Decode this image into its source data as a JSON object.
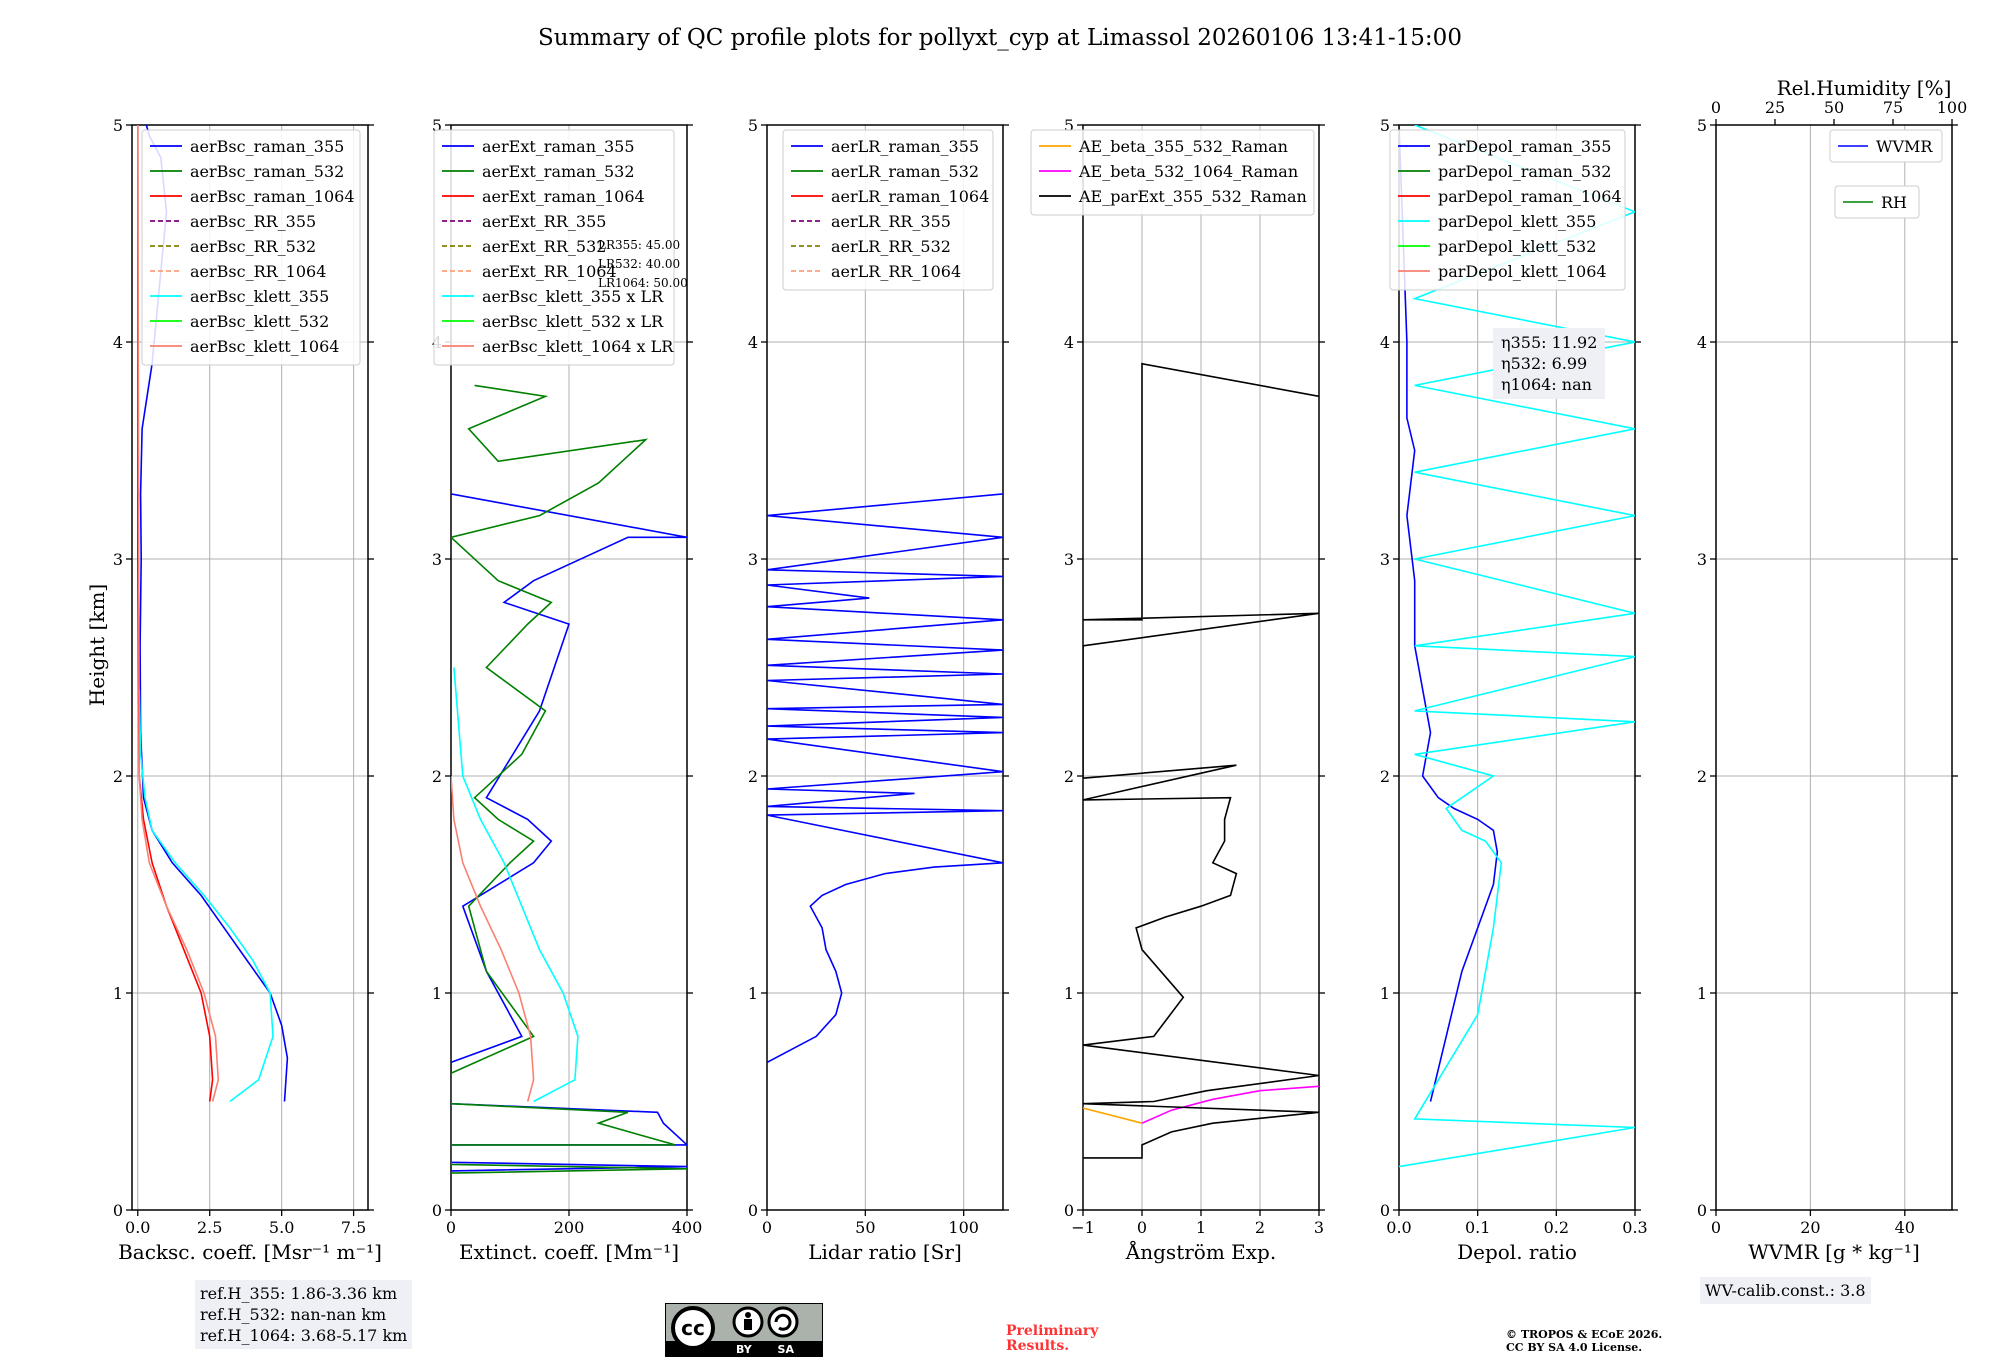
{
  "title": "Summary of QC profile plots for pollyxt_cyp at Limassol 20260106 13:41-15:00",
  "ylabel": "Height [km]",
  "colors": {
    "raman_355": "#0000ff",
    "raman_532": "#008000",
    "raman_1064": "#ff0000",
    "rr_355": "#800080",
    "rr_532": "#808000",
    "rr_1064": "#ffa07a",
    "klett_355": "#00ffff",
    "klett_532": "#00ff00",
    "klett_1064": "#fa8072",
    "ae_355_532": "#ffa500",
    "ae_532_1064": "#ff00ff",
    "ae_parext": "#000000",
    "box_bg": "#eef0f5",
    "prelim": "#ff3333"
  },
  "panels": {
    "bsc": {
      "xlabel": "Backsc. coeff. [Msr⁻¹ m⁻¹]",
      "legend": [
        "aerBsc_raman_355",
        "aerBsc_raman_532",
        "aerBsc_raman_1064",
        "aerBsc_RR_355",
        "aerBsc_RR_532",
        "aerBsc_RR_1064",
        "aerBsc_klett_355",
        "aerBsc_klett_532",
        "aerBsc_klett_1064"
      ]
    },
    "ext": {
      "xlabel": "Extinct. coeff. [Mm⁻¹]",
      "legend": [
        "aerExt_raman_355",
        "aerExt_raman_532",
        "aerExt_raman_1064",
        "aerExt_RR_355",
        "aerExt_RR_532",
        "aerExt_RR_1064",
        "aerBsc_klett_355 x LR",
        "aerBsc_klett_532 x LR",
        "aerBsc_klett_1064 x LR"
      ],
      "lr_note": [
        "LR355: 45.00",
        "LR532: 40.00",
        "LR1064: 50.00"
      ]
    },
    "lr": {
      "xlabel": "Lidar ratio [Sr]",
      "legend": [
        "aerLR_raman_355",
        "aerLR_raman_532",
        "aerLR_raman_1064",
        "aerLR_RR_355",
        "aerLR_RR_532",
        "aerLR_RR_1064"
      ]
    },
    "ae": {
      "xlabel": "Ångström Exp.",
      "legend": [
        "AE_beta_355_532_Raman",
        "AE_beta_532_1064_Raman",
        "AE_parExt_355_532_Raman"
      ]
    },
    "depol": {
      "xlabel": "Depol. ratio",
      "legend": [
        "parDepol_raman_355",
        "parDepol_raman_532",
        "parDepol_raman_1064",
        "parDepol_klett_355",
        "parDepol_klett_532",
        "parDepol_klett_1064"
      ],
      "eta": [
        "η355: 11.92",
        "η532: 6.99",
        "η1064: nan"
      ]
    },
    "wv": {
      "xlabel": "WVMR [g * kg⁻¹]",
      "top_label": "Rel.Humidity [%]",
      "legend": [
        "WVMR",
        "RH"
      ],
      "calib": "WV-calib.const.: 3.8"
    }
  },
  "refh": [
    "ref.H_355: 1.86-3.36 km",
    "ref.H_532: nan-nan km",
    "ref.H_1064: 3.68-5.17 km"
  ],
  "license": {
    "badge": "BY SA",
    "cc": "cc"
  },
  "preliminary": [
    "Preliminary",
    "Results."
  ],
  "copyright": [
    "© TROPOS & ECoE 2026.",
    "CC BY SA 4.0 License."
  ],
  "chart_data": [
    {
      "type": "line",
      "name": "backscatter",
      "xlabel": "Backsc. coeff. [Msr⁻¹ m⁻¹]",
      "ylabel": "Height [km]",
      "xlim": [
        -0.2,
        8
      ],
      "ylim": [
        0,
        5
      ],
      "xticks": [
        0,
        2.5,
        5,
        7.5
      ],
      "yticks": [
        0,
        1,
        2,
        3,
        4,
        5
      ],
      "series": [
        {
          "name": "aerBsc_raman_355",
          "color": "#0000ff",
          "x": [
            5.1,
            5.2,
            5.0,
            4.6,
            3.8,
            3.0,
            2.2,
            1.2,
            0.5,
            0.2,
            0.1,
            0.08,
            0.12,
            0.1,
            0.15,
            0.5,
            1.0,
            0.8,
            0.4,
            0.3
          ],
          "y": [
            0.5,
            0.7,
            0.85,
            1.0,
            1.15,
            1.3,
            1.45,
            1.6,
            1.75,
            1.9,
            2.2,
            2.6,
            3.0,
            3.3,
            3.6,
            3.9,
            4.6,
            4.85,
            4.95,
            5.0
          ]
        },
        {
          "name": "aerBsc_raman_532",
          "color": "#008000",
          "x": [],
          "y": []
        },
        {
          "name": "aerBsc_raman_1064",
          "color": "#ff0000",
          "x": [
            2.5,
            2.6,
            2.5,
            2.2,
            1.6,
            1.0,
            0.5,
            0.2,
            0.05,
            0.0,
            0.0
          ],
          "y": [
            0.5,
            0.6,
            0.8,
            1.0,
            1.2,
            1.4,
            1.6,
            1.8,
            2.0,
            3.0,
            5.0
          ]
        },
        {
          "name": "aerBsc_klett_355",
          "color": "#00ffff",
          "x": [
            3.2,
            4.2,
            4.7,
            4.6,
            4.0,
            3.2,
            2.3,
            1.3,
            0.5,
            0.25,
            0.1,
            0.05
          ],
          "y": [
            0.5,
            0.6,
            0.8,
            1.0,
            1.15,
            1.3,
            1.45,
            1.6,
            1.75,
            1.9,
            2.1,
            2.4
          ]
        },
        {
          "name": "aerBsc_klett_1064",
          "color": "#fa8072",
          "x": [
            2.6,
            2.8,
            2.7,
            2.3,
            1.7,
            1.0,
            0.4,
            0.15,
            0.05,
            0.0
          ],
          "y": [
            0.5,
            0.6,
            0.8,
            1.0,
            1.2,
            1.4,
            1.6,
            1.8,
            2.0,
            5.0
          ]
        }
      ]
    },
    {
      "type": "line",
      "name": "extinction",
      "xlabel": "Extinct. coeff. [Mm⁻¹]",
      "ylabel": "Height [km]",
      "xlim": [
        0,
        400
      ],
      "ylim": [
        0,
        5
      ],
      "xticks": [
        0,
        200,
        400
      ],
      "yticks": [
        0,
        1,
        2,
        3,
        4,
        5
      ],
      "series": [
        {
          "name": "aerExt_raman_355",
          "color": "#0000ff",
          "x": [
            0,
            400,
            0,
            0,
            350,
            360,
            400,
            0,
            0,
            120,
            60,
            20,
            140,
            170,
            130,
            60,
            150,
            200,
            90,
            140,
            300,
            400,
            0
          ],
          "y": [
            0.18,
            0.2,
            0.22,
            0.49,
            0.45,
            0.4,
            0.3,
            0.3,
            0.68,
            0.8,
            1.1,
            1.4,
            1.6,
            1.7,
            1.8,
            1.9,
            2.3,
            2.7,
            2.8,
            2.9,
            3.1,
            3.1,
            3.3
          ]
        },
        {
          "name": "aerExt_raman_532",
          "color": "#008000",
          "x": [
            0,
            400,
            0,
            0,
            300,
            250,
            380,
            0,
            0,
            140,
            60,
            30,
            100,
            140,
            80,
            40,
            120,
            160,
            60,
            130,
            170,
            80,
            0,
            150,
            250,
            330,
            80,
            30,
            160,
            40
          ],
          "y": [
            0.17,
            0.19,
            0.21,
            0.49,
            0.45,
            0.4,
            0.3,
            0.3,
            0.63,
            0.8,
            1.1,
            1.4,
            1.6,
            1.7,
            1.8,
            1.9,
            2.1,
            2.3,
            2.5,
            2.7,
            2.8,
            2.9,
            3.1,
            3.2,
            3.35,
            3.55,
            3.45,
            3.6,
            3.75,
            3.8
          ]
        },
        {
          "name": "aerBsc_klett_355 x LR",
          "color": "#00ffff",
          "x": [
            140,
            210,
            215,
            190,
            150,
            120,
            90,
            50,
            20,
            5
          ],
          "y": [
            0.5,
            0.6,
            0.8,
            1.0,
            1.2,
            1.4,
            1.6,
            1.8,
            2.0,
            2.5
          ]
        },
        {
          "name": "aerBsc_klett_1064 x LR",
          "color": "#fa8072",
          "x": [
            130,
            140,
            135,
            115,
            85,
            50,
            20,
            5,
            0
          ],
          "y": [
            0.5,
            0.6,
            0.8,
            1.0,
            1.2,
            1.4,
            1.6,
            1.8,
            2.0
          ]
        }
      ]
    },
    {
      "type": "line",
      "name": "lidar_ratio",
      "xlabel": "Lidar ratio [Sr]",
      "xlim": [
        0,
        120
      ],
      "ylim": [
        0,
        5
      ],
      "xticks": [
        0,
        50,
        100
      ],
      "yticks": [
        0,
        1,
        2,
        3,
        4,
        5
      ],
      "series": [
        {
          "name": "aerLR_raman_355",
          "color": "#0000ff",
          "x": [
            0,
            25,
            35,
            38,
            35,
            30,
            28,
            22,
            28,
            40,
            60,
            85,
            120,
            0,
            120,
            0,
            75,
            0,
            120,
            0,
            120,
            0,
            120,
            0,
            120,
            0,
            120,
            0,
            120,
            0,
            120,
            0,
            52,
            0,
            120,
            0,
            120,
            0,
            120
          ],
          "y": [
            0.68,
            0.8,
            0.9,
            1.0,
            1.1,
            1.2,
            1.3,
            1.4,
            1.45,
            1.5,
            1.55,
            1.58,
            1.6,
            1.82,
            1.84,
            1.86,
            1.92,
            1.94,
            2.02,
            2.17,
            2.2,
            2.23,
            2.27,
            2.31,
            2.33,
            2.44,
            2.47,
            2.51,
            2.58,
            2.63,
            2.72,
            2.78,
            2.82,
            2.88,
            2.92,
            2.95,
            3.1,
            3.2,
            3.3
          ]
        }
      ]
    },
    {
      "type": "line",
      "name": "angstrom",
      "xlabel": "Ångström Exp.",
      "xlim": [
        -1,
        3
      ],
      "ylim": [
        0,
        5
      ],
      "xticks": [
        -1,
        0,
        1,
        2,
        3
      ],
      "yticks": [
        0,
        1,
        2,
        3,
        4,
        5
      ],
      "series": [
        {
          "name": "AE_beta_355_532_Raman",
          "color": "#ffa500",
          "x": [
            -1,
            0
          ],
          "y": [
            0.47,
            0.4
          ]
        },
        {
          "name": "AE_beta_532_1064_Raman",
          "color": "#ff00ff",
          "x": [
            0,
            0.5,
            1.2,
            2.0,
            3.0
          ],
          "y": [
            0.4,
            0.46,
            0.51,
            0.55,
            0.57
          ]
        },
        {
          "name": "AE_parExt_355_532_Raman",
          "color": "#000000",
          "x": [
            -1,
            0,
            0,
            0.5,
            1.2,
            3.0,
            -1,
            0.2,
            1.1,
            3.0,
            -1,
            0.2,
            0.7,
            0.0,
            -0.1,
            0.4,
            1.0,
            1.5,
            1.6,
            1.2,
            1.4,
            1.4,
            1.5,
            -1,
            1.6,
            -1,
            -1,
            -1,
            3.0,
            -1,
            0,
            0,
            3.0
          ],
          "y": [
            0.24,
            0.24,
            0.3,
            0.36,
            0.4,
            0.45,
            0.49,
            0.5,
            0.55,
            0.62,
            0.76,
            0.8,
            0.98,
            1.2,
            1.3,
            1.35,
            1.4,
            1.45,
            1.55,
            1.6,
            1.7,
            1.8,
            1.9,
            1.89,
            2.05,
            1.99,
            2.15,
            2.6,
            2.75,
            2.72,
            2.72,
            3.9,
            3.75
          ]
        }
      ]
    },
    {
      "type": "line",
      "name": "depol",
      "xlabel": "Depol. ratio",
      "xlim": [
        0,
        0.3
      ],
      "ylim": [
        0,
        5
      ],
      "xticks": [
        0,
        0.1,
        0.2,
        0.3
      ],
      "yticks": [
        0,
        1,
        2,
        3,
        4,
        5
      ],
      "series": [
        {
          "name": "parDepol_raman_355",
          "color": "#0000ff",
          "x": [
            0.04,
            0.06,
            0.08,
            0.1,
            0.12,
            0.125,
            0.12,
            0.1,
            0.07,
            0.05,
            0.03,
            0.04,
            0.03,
            0.02,
            0.02,
            0.01,
            0.02,
            0.01,
            0.01,
            0.0
          ],
          "y": [
            0.5,
            0.8,
            1.1,
            1.3,
            1.5,
            1.65,
            1.75,
            1.8,
            1.85,
            1.9,
            2.0,
            2.2,
            2.4,
            2.6,
            2.9,
            3.2,
            3.5,
            3.65,
            4.0,
            5.0
          ]
        },
        {
          "name": "parDepol_klett_355",
          "color": "#00ffff",
          "x": [
            0.0,
            0.3,
            0.02,
            0.1,
            0.12,
            0.13,
            0.11,
            0.08,
            0.06,
            0.1,
            0.12,
            0.07,
            0.02,
            0.3,
            0.02,
            0.3,
            0.02,
            0.3,
            0.02,
            0.3,
            0.02,
            0.3,
            0.02,
            0.3,
            0.02,
            0.3,
            0.02
          ],
          "y": [
            0.2,
            0.38,
            0.42,
            0.9,
            1.3,
            1.6,
            1.7,
            1.75,
            1.85,
            1.95,
            2.0,
            2.05,
            2.1,
            2.25,
            2.3,
            2.55,
            2.6,
            2.75,
            3.0,
            3.2,
            3.4,
            3.6,
            3.8,
            4.0,
            4.2,
            4.6,
            5.0
          ]
        }
      ]
    },
    {
      "type": "line",
      "name": "water_vapor",
      "xlabel": "WVMR [g * kg⁻¹]",
      "x2label": "Rel.Humidity [%]",
      "xlim": [
        0,
        50
      ],
      "x2lim": [
        0,
        100
      ],
      "ylim": [
        0,
        5
      ],
      "xticks": [
        0,
        20,
        40
      ],
      "x2ticks": [
        0,
        25,
        50,
        75,
        100
      ],
      "yticks": [
        0,
        1,
        2,
        3,
        4,
        5
      ],
      "series": [
        {
          "name": "WVMR",
          "color": "#0000ff",
          "x": [],
          "y": []
        },
        {
          "name": "RH",
          "color": "#008000",
          "x": [],
          "y": []
        }
      ]
    }
  ]
}
